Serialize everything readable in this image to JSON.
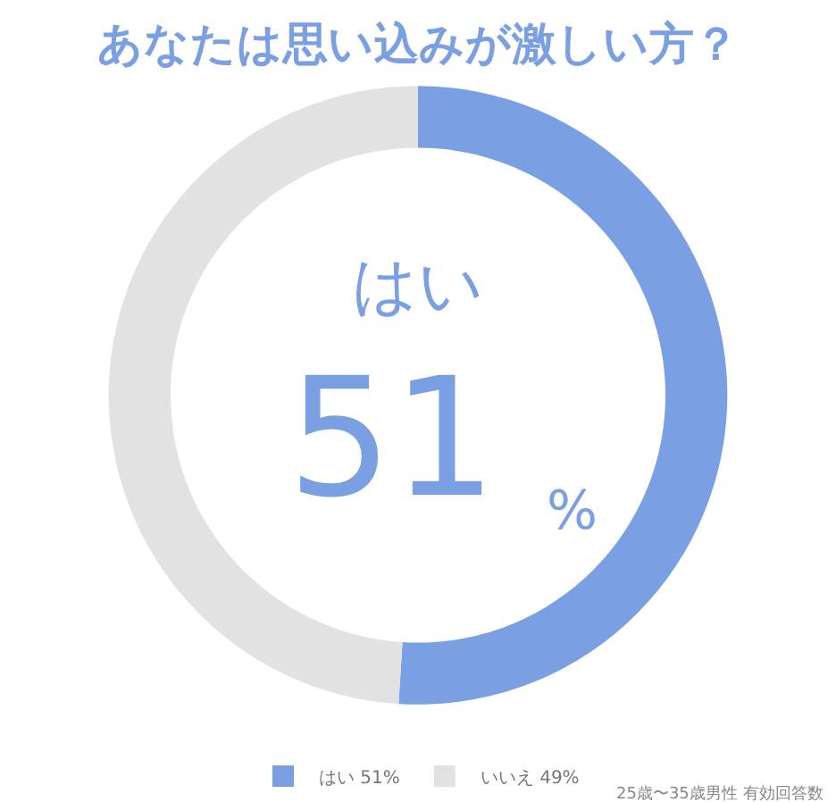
{
  "chart_data": {
    "type": "donut",
    "title": "あなたは思い込みが激しい方？",
    "categories": [
      "はい 51%",
      "いいえ 49%"
    ],
    "values": [
      51,
      49
    ],
    "colors": [
      "#7a9fe3",
      "#e2e2e2"
    ],
    "legend": "bottom",
    "annotations": [
      "はい",
      "51",
      "%",
      "25歳〜35歳男性 有効回答数"
    ]
  }
}
